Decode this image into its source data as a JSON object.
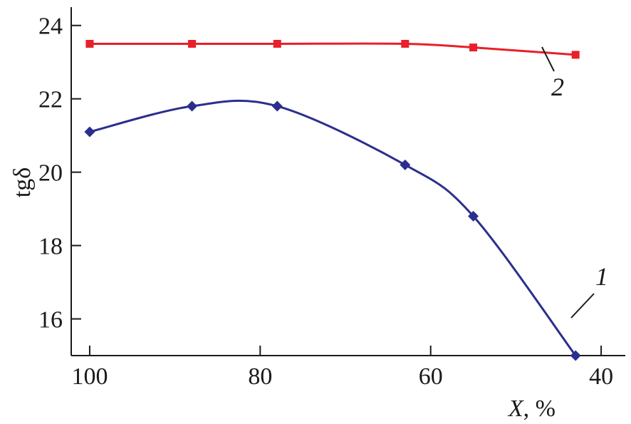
{
  "chart_data": {
    "type": "line",
    "title": "",
    "xlabel": "X, %",
    "ylabel": "tgδ",
    "xlim": [
      102,
      37
    ],
    "ylim": [
      15,
      24.5
    ],
    "x_reversed": true,
    "x_ticks": [
      100,
      80,
      60,
      40
    ],
    "y_ticks": [
      16,
      18,
      20,
      22,
      24
    ],
    "x_tick_labels": [
      "100",
      "80",
      "60",
      "40"
    ],
    "y_tick_labels": [
      "16",
      "18",
      "20",
      "22",
      "24"
    ],
    "grid": false,
    "legend": "none",
    "series": [
      {
        "label": "1",
        "color": "#2b2e8e",
        "marker": "diamond",
        "x": [
          100,
          88,
          78,
          63,
          55,
          43
        ],
        "y": [
          21.1,
          21.8,
          21.8,
          20.2,
          18.8,
          15.0
        ]
      },
      {
        "label": "2",
        "color": "#e8202a",
        "marker": "square",
        "x": [
          100,
          88,
          78,
          63,
          55,
          43
        ],
        "y": [
          23.5,
          23.5,
          23.5,
          23.5,
          23.4,
          23.2
        ]
      }
    ]
  }
}
